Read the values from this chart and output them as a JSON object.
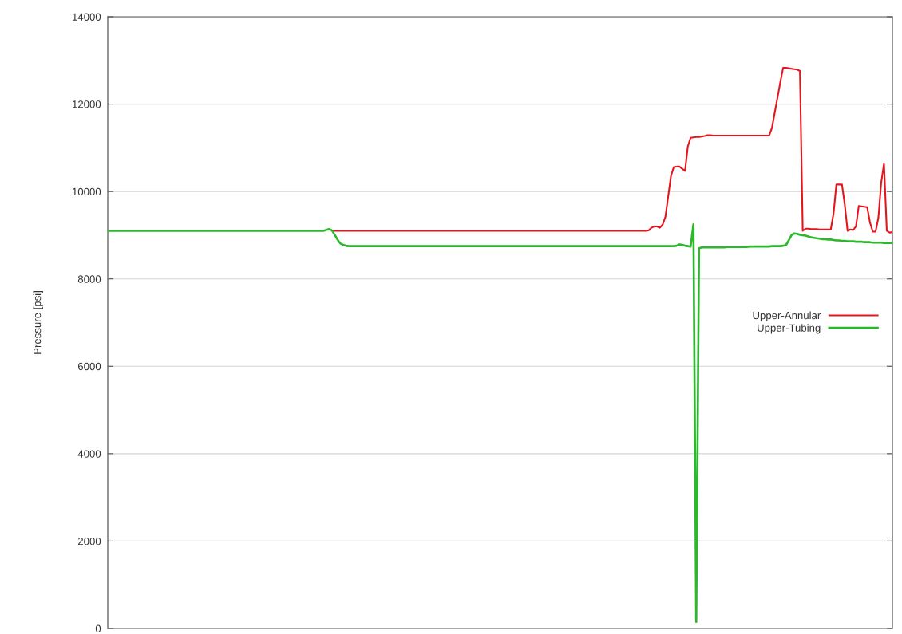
{
  "chart_data": {
    "type": "line",
    "ylabel": "Pressure [psi]",
    "categories": [
      null,
      null,
      null,
      null,
      null,
      null,
      null,
      null,
      null,
      null,
      null,
      null,
      null,
      null,
      null,
      null,
      null,
      null,
      null,
      null,
      null,
      null,
      null,
      null,
      null,
      null,
      null,
      null,
      null,
      null,
      null,
      null,
      null,
      null,
      null,
      null,
      null,
      null,
      null,
      null,
      null,
      null,
      null,
      null,
      null,
      null,
      null,
      null,
      null,
      null,
      null,
      null,
      null,
      null,
      null,
      null,
      null,
      null,
      null,
      null,
      null,
      null,
      null,
      null,
      null,
      null,
      null,
      null,
      null,
      null,
      null,
      null,
      null,
      null,
      null,
      null,
      null,
      null,
      null,
      null,
      null,
      null,
      null,
      null,
      null,
      null,
      null,
      null,
      null,
      null,
      null,
      null,
      null,
      null,
      null,
      null,
      null,
      null,
      null,
      null,
      null,
      null,
      null,
      null,
      null,
      null,
      null,
      null,
      null,
      null,
      null,
      null,
      null,
      null,
      null,
      null,
      null,
      null,
      null,
      null,
      null,
      null,
      null,
      null,
      null,
      null,
      null,
      null,
      null,
      null,
      null,
      null,
      null,
      null,
      null,
      null,
      null,
      null,
      null,
      null,
      null,
      null,
      null,
      null,
      null,
      null,
      null,
      null,
      null,
      null,
      null,
      null,
      null,
      null,
      null,
      null,
      null,
      null,
      null,
      null,
      null,
      null,
      null,
      null,
      null,
      null,
      null,
      null,
      null,
      null,
      null,
      null,
      null,
      null,
      null,
      null,
      null,
      null,
      null,
      null,
      null,
      null,
      null,
      null,
      null,
      null,
      null,
      null,
      null,
      null,
      null,
      null,
      null,
      null,
      null,
      null,
      null,
      null,
      null,
      null,
      null,
      null,
      null,
      null,
      null,
      null,
      null,
      null,
      null,
      null,
      null,
      null,
      null,
      null,
      null,
      null,
      null,
      null,
      null,
      null,
      null,
      null,
      null,
      null,
      null,
      null,
      null,
      null,
      null,
      null,
      null,
      null,
      null,
      null,
      null,
      null,
      null,
      null,
      null,
      null,
      null,
      null,
      null,
      null,
      null,
      null,
      null,
      null,
      null,
      null,
      null,
      null,
      null,
      null,
      null,
      null,
      null,
      null,
      null,
      null,
      null,
      null,
      null,
      null,
      null,
      null,
      null,
      null,
      null,
      null,
      null,
      null,
      null,
      null,
      null,
      null,
      null,
      null,
      null,
      null,
      null
    ],
    "ylim": [
      0,
      14000
    ],
    "yticks": [
      0,
      2000,
      4000,
      6000,
      8000,
      10000,
      12000,
      14000
    ],
    "tick_labels": "y",
    "grid": "y",
    "legend": "right",
    "series": [
      {
        "name": "Upper-Annular",
        "color": "#e3161e",
        "values": [
          null,
          null,
          null,
          null,
          null,
          null,
          null,
          null,
          null,
          null,
          null,
          null,
          null,
          null,
          null,
          null,
          null,
          null,
          null,
          null,
          null,
          null,
          null,
          null,
          null,
          null,
          null,
          null,
          null,
          null,
          null,
          null,
          null,
          null,
          null,
          null,
          null,
          null,
          null,
          null,
          null,
          null,
          null,
          null,
          null,
          null,
          null,
          null,
          null,
          null,
          null,
          null,
          null,
          null,
          null,
          null,
          null,
          null,
          null,
          null,
          null,
          null,
          null,
          null,
          null,
          null,
          null,
          null,
          null,
          null,
          null,
          null,
          null,
          null,
          null,
          null,
          null,
          null,
          null,
          null,
          9100,
          9100,
          9100,
          9100,
          9100,
          9100,
          9100,
          9100,
          9100,
          9100,
          9100,
          9100,
          9100,
          9100,
          9100,
          9100,
          9100,
          9100,
          9100,
          9100,
          9100,
          9100,
          9100,
          9100,
          9100,
          9100,
          9100,
          9100,
          9100,
          9100,
          9100,
          9100,
          9100,
          9100,
          9100,
          9100,
          9100,
          9100,
          9100,
          9100,
          9100,
          9100,
          9100,
          9100,
          9100,
          9100,
          9100,
          9100,
          9100,
          9100,
          9100,
          9100,
          9100,
          9100,
          9100,
          9100,
          9100,
          9100,
          9100,
          9100,
          9100,
          9100,
          9100,
          9100,
          9100,
          9100,
          9100,
          9100,
          9100,
          9100,
          9100,
          9100,
          9100,
          9100,
          9100,
          9100,
          9100,
          9100,
          9100,
          9100,
          9100,
          9100,
          9100,
          9100,
          9100,
          9100,
          9100,
          9100,
          9100,
          9100,
          9100,
          9100,
          9100,
          9100,
          9100,
          9100,
          9100,
          9100,
          9100,
          9100,
          9100,
          9100,
          9100,
          9100,
          9100,
          9100,
          9100,
          9100,
          9100,
          9100,
          9100,
          9100,
          9100,
          9110,
          9170,
          9200,
          9200,
          9170,
          9240,
          9420,
          9890,
          10360,
          10560,
          10570,
          10570,
          10520,
          10470,
          11030,
          11230,
          11240,
          11250,
          11250,
          11260,
          11270,
          11290,
          11290,
          11280,
          11280,
          11280,
          11280,
          11280,
          11280,
          11280,
          11280,
          11280,
          11280,
          11280,
          11280,
          11280,
          11280,
          11280,
          11280,
          11280,
          11280,
          11280,
          11280,
          11280,
          11450,
          11800,
          12150,
          12500,
          12830,
          12830,
          12820,
          12810,
          12800,
          12790,
          12760,
          9100,
          9150,
          9150,
          9140,
          9140,
          9140,
          9130,
          9130,
          9130,
          9130,
          9130,
          9500,
          10160,
          10160,
          10160,
          9700,
          9100,
          9130,
          9120,
          9200,
          9670,
          9660,
          9650,
          9640,
          9290,
          9080,
          9080,
          9400,
          10200,
          10640,
          9100,
          9060,
          9070
        ]
      },
      {
        "name": "Upper-Tubing",
        "color": "#2cb82c",
        "values": [
          9100,
          9100,
          9100,
          9100,
          9100,
          9100,
          9100,
          9100,
          9100,
          9100,
          9100,
          9100,
          9100,
          9100,
          9100,
          9100,
          9100,
          9100,
          9100,
          9100,
          9100,
          9100,
          9100,
          9100,
          9100,
          9100,
          9100,
          9100,
          9100,
          9100,
          9100,
          9100,
          9100,
          9100,
          9100,
          9100,
          9100,
          9100,
          9100,
          9100,
          9100,
          9100,
          9100,
          9100,
          9100,
          9100,
          9100,
          9100,
          9100,
          9100,
          9100,
          9100,
          9100,
          9100,
          9100,
          9100,
          9100,
          9100,
          9100,
          9100,
          9100,
          9100,
          9100,
          9100,
          9100,
          9100,
          9100,
          9100,
          9100,
          9100,
          9100,
          9100,
          9100,
          9100,
          9100,
          9100,
          9100,
          9100,
          9120,
          9140,
          9110,
          9010,
          8900,
          8810,
          8780,
          8760,
          8750,
          8750,
          8750,
          8750,
          8750,
          8750,
          8750,
          8750,
          8750,
          8750,
          8750,
          8750,
          8750,
          8750,
          8750,
          8750,
          8750,
          8750,
          8750,
          8750,
          8750,
          8750,
          8750,
          8750,
          8750,
          8750,
          8750,
          8750,
          8750,
          8750,
          8750,
          8750,
          8750,
          8750,
          8750,
          8750,
          8750,
          8750,
          8750,
          8750,
          8750,
          8750,
          8750,
          8750,
          8750,
          8750,
          8750,
          8750,
          8750,
          8750,
          8750,
          8750,
          8750,
          8750,
          8750,
          8750,
          8750,
          8750,
          8750,
          8750,
          8750,
          8750,
          8750,
          8750,
          8750,
          8750,
          8750,
          8750,
          8750,
          8750,
          8750,
          8750,
          8750,
          8750,
          8750,
          8750,
          8750,
          8750,
          8750,
          8750,
          8750,
          8750,
          8750,
          8750,
          8750,
          8750,
          8750,
          8750,
          8750,
          8750,
          8750,
          8750,
          8750,
          8750,
          8750,
          8750,
          8750,
          8750,
          8750,
          8750,
          8750,
          8750,
          8750,
          8750,
          8750,
          8750,
          8750,
          8750,
          8750,
          8750,
          8750,
          8750,
          8750,
          8750,
          8750,
          8750,
          8750,
          8760,
          8790,
          8780,
          8760,
          8750,
          8740,
          9250,
          150,
          8700,
          8720,
          8720,
          8720,
          8720,
          8720,
          8720,
          8720,
          8720,
          8720,
          8730,
          8730,
          8730,
          8730,
          8730,
          8730,
          8730,
          8730,
          8740,
          8740,
          8740,
          8740,
          8740,
          8740,
          8740,
          8740,
          8750,
          8750,
          8750,
          8750,
          8760,
          8770,
          8880,
          9000,
          9040,
          9030,
          9010,
          9000,
          8990,
          8970,
          8950,
          8940,
          8930,
          8920,
          8910,
          8910,
          8900,
          8900,
          8890,
          8880,
          8880,
          8870,
          8870,
          8860,
          8860,
          8860,
          8850,
          8850,
          8850,
          8840,
          8840,
          8840,
          8830,
          8830,
          8830,
          8830,
          8820,
          8820,
          8820,
          8820
        ]
      }
    ]
  }
}
